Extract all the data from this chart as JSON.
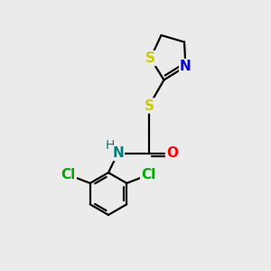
{
  "background_color": "#ebebeb",
  "atom_colors": {
    "S": "#cccc00",
    "N_blue": "#0000cc",
    "N_teal": "#008080",
    "O": "#ff0000",
    "Cl": "#00aa00",
    "C": "#000000",
    "H": "#555555"
  },
  "bond_color": "#000000",
  "bond_width": 1.6,
  "font_size_atoms": 11,
  "figsize": [
    3.0,
    3.0
  ],
  "dpi": 100
}
